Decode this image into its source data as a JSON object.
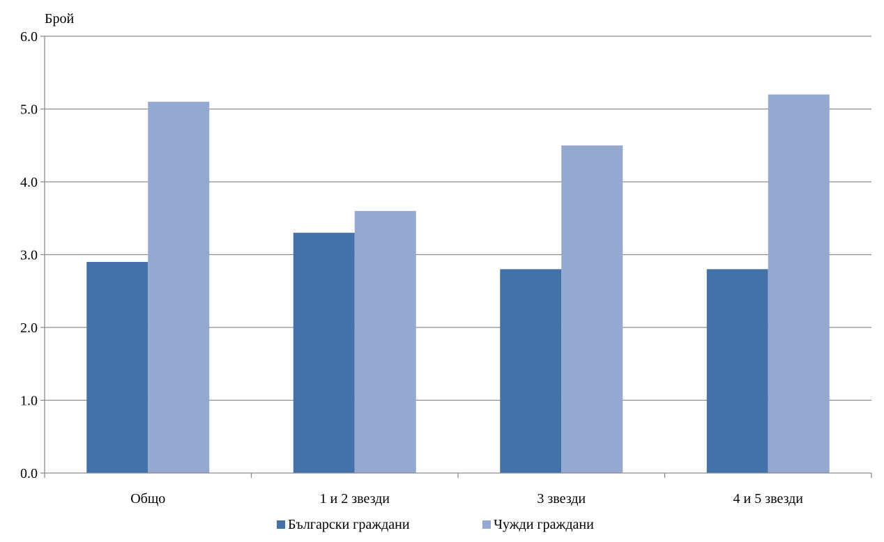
{
  "chart_data": {
    "type": "bar",
    "title": "",
    "xlabel": "",
    "ylabel": "Брой",
    "ylim": [
      0,
      6
    ],
    "ytick_step": 1,
    "ytick_labels": [
      "0.0",
      "1.0",
      "2.0",
      "3.0",
      "4.0",
      "5.0",
      "6.0"
    ],
    "grid": true,
    "legend_position": "bottom",
    "categories": [
      "Общо",
      "1 и 2 звезди",
      "3 звезди",
      "4 и 5 звезди"
    ],
    "series": [
      {
        "name": "Български граждани",
        "color": "#4472A8",
        "values": [
          2.9,
          3.3,
          2.8,
          2.8
        ]
      },
      {
        "name": "Чужди граждани",
        "color": "#95A9D0",
        "values": [
          5.1,
          3.6,
          4.5,
          5.2
        ]
      }
    ],
    "colors": {
      "gridline": "#8C8C8C",
      "axis": "#8C8C8C"
    }
  }
}
